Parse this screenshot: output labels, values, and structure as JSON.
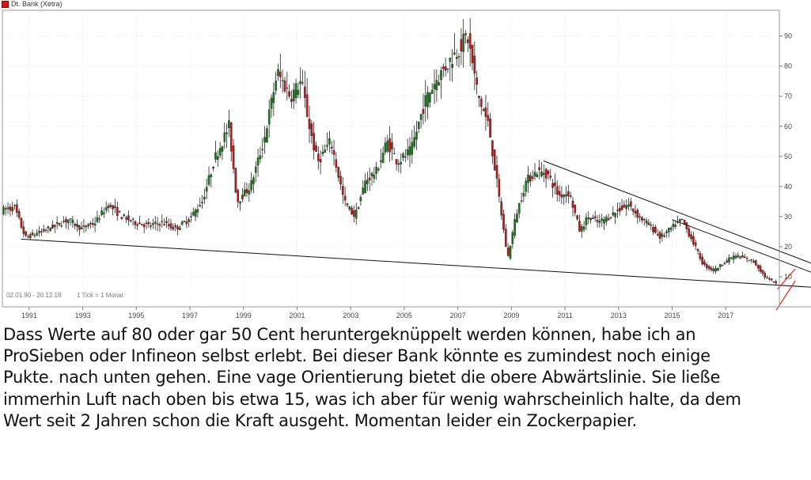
{
  "chart_data": {
    "type": "candlestick",
    "title": "Dt. Bank (Xetra)",
    "range_text": "02.01.90 - 20.12.18",
    "interval_text": "1 Tick = 1 Monat",
    "x_range": [
      1990.0,
      2019.0
    ],
    "y_range": [
      0,
      97
    ],
    "y_ticks": [
      "10",
      "20",
      "30",
      "40",
      "50",
      "60",
      "70",
      "80",
      "90"
    ],
    "x_ticks": [
      "1991",
      "1993",
      "1995",
      "1997",
      "1999",
      "2001",
      "2003",
      "2005",
      "2007",
      "2009",
      "2011",
      "2013",
      "2015",
      "2017"
    ],
    "colors": {
      "up": "#1a7a1a",
      "down": "#c01818",
      "trendline": "#111111",
      "marker": "#e02020",
      "grid": "#d6d6d6"
    },
    "price_path": [
      [
        1990.0,
        32
      ],
      [
        1990.5,
        33
      ],
      [
        1990.9,
        23
      ],
      [
        1991.5,
        25
      ],
      [
        1992.0,
        27
      ],
      [
        1992.5,
        29
      ],
      [
        1993.0,
        26
      ],
      [
        1993.5,
        28
      ],
      [
        1994.0,
        34
      ],
      [
        1994.5,
        30
      ],
      [
        1995.0,
        28
      ],
      [
        1995.5,
        27
      ],
      [
        1996.0,
        28
      ],
      [
        1996.5,
        26
      ],
      [
        1997.0,
        29
      ],
      [
        1997.5,
        35
      ],
      [
        1998.0,
        50
      ],
      [
        1998.5,
        60
      ],
      [
        1998.8,
        35
      ],
      [
        1999.3,
        40
      ],
      [
        1999.8,
        55
      ],
      [
        2000.3,
        78
      ],
      [
        2000.8,
        70
      ],
      [
        2001.2,
        75
      ],
      [
        2001.5,
        60
      ],
      [
        2001.8,
        48
      ],
      [
        2002.3,
        55
      ],
      [
        2002.8,
        35
      ],
      [
        2003.2,
        30
      ],
      [
        2003.6,
        42
      ],
      [
        2004.0,
        45
      ],
      [
        2004.4,
        55
      ],
      [
        2004.8,
        48
      ],
      [
        2005.3,
        52
      ],
      [
        2005.8,
        68
      ],
      [
        2006.2,
        75
      ],
      [
        2006.6,
        80
      ],
      [
        2007.0,
        85
      ],
      [
        2007.4,
        90
      ],
      [
        2007.8,
        70
      ],
      [
        2008.2,
        60
      ],
      [
        2008.6,
        35
      ],
      [
        2008.9,
        16
      ],
      [
        2009.2,
        30
      ],
      [
        2009.6,
        42
      ],
      [
        2010.0,
        45
      ],
      [
        2010.4,
        44
      ],
      [
        2010.8,
        37
      ],
      [
        2011.2,
        38
      ],
      [
        2011.6,
        25
      ],
      [
        2011.9,
        30
      ],
      [
        2012.3,
        28
      ],
      [
        2012.7,
        30
      ],
      [
        2013.0,
        32
      ],
      [
        2013.4,
        34
      ],
      [
        2013.8,
        30
      ],
      [
        2014.2,
        27
      ],
      [
        2014.6,
        23
      ],
      [
        2015.0,
        26
      ],
      [
        2015.4,
        29
      ],
      [
        2015.8,
        22
      ],
      [
        2016.2,
        14
      ],
      [
        2016.6,
        12
      ],
      [
        2017.0,
        15
      ],
      [
        2017.4,
        17
      ],
      [
        2017.8,
        16
      ],
      [
        2018.1,
        15
      ],
      [
        2018.5,
        10
      ],
      [
        2018.95,
        7.5
      ]
    ],
    "trendlines": [
      {
        "from": [
          1990.7,
          22.5
        ],
        "to": [
          2019.0,
          6
        ]
      },
      {
        "from": [
          2010.2,
          48.5
        ],
        "to": [
          2019.0,
          14
        ]
      },
      {
        "from": [
          2015.0,
          29
        ],
        "to": [
          2019.0,
          11
        ]
      }
    ],
    "markers": [
      {
        "type": "line",
        "from": [
          2018.88,
          1.5
        ],
        "to": [
          2019.0,
          7
        ]
      },
      {
        "type": "line",
        "from": [
          2018.93,
          8.5
        ],
        "to": [
          2019.0,
          11
        ]
      }
    ],
    "grid": true,
    "axis_side": "right",
    "legend": "top-left"
  },
  "caption_lines": [
    "Dass Werte auf 80 oder gar 50 Cent heruntergeknüppelt werden können, habe ich an",
    "ProSieben oder Infineon selbst erlebt.  Bei dieser Bank könnte es zumindest noch einige",
    "Pukte. nach unten gehen. Eine vage Orientierung bietet die obere Abwärtslinie. Sie ließe",
    "immerhin Luft nach oben bis etwa 15, was ich aber für wenig wahrscheinlich halte, da dem",
    "Wert seit 2 Jahren schon die Kraft ausgeht. Momentan leider ein Zockerpapier."
  ]
}
